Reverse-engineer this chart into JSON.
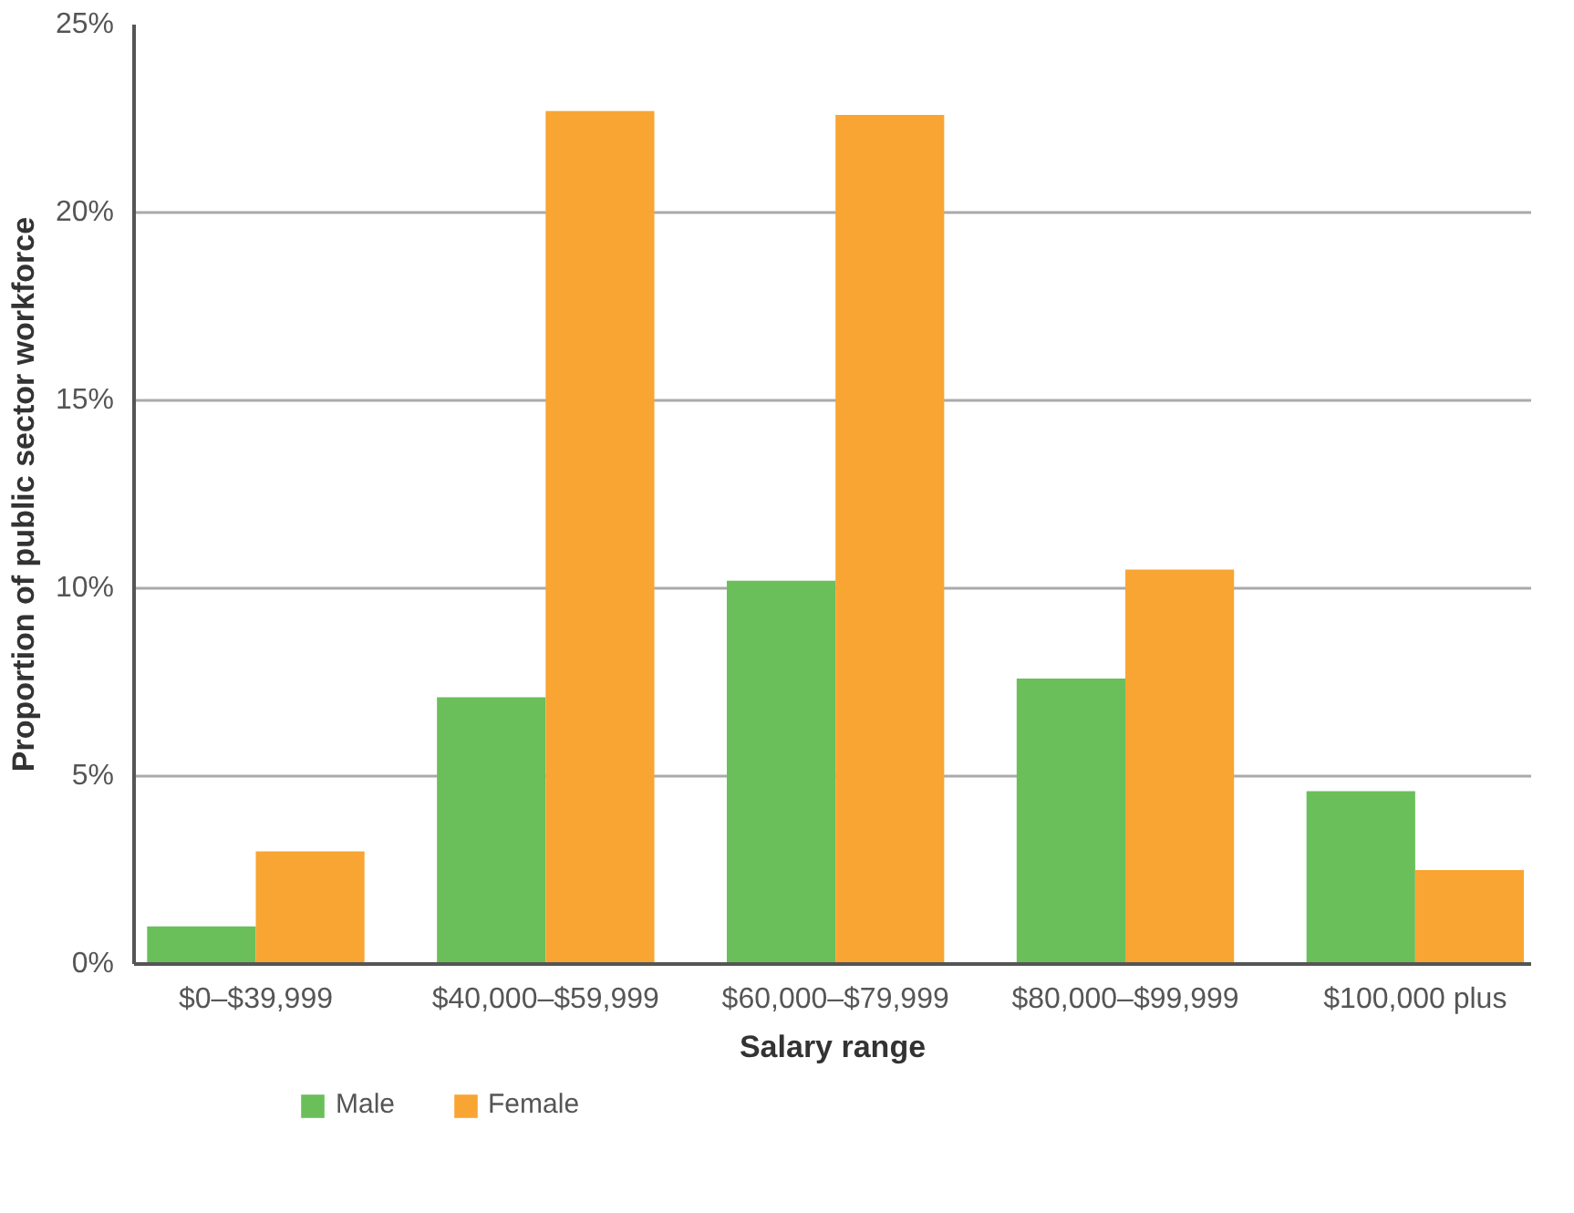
{
  "chart_data": {
    "type": "bar",
    "xlabel": "Salary range",
    "ylabel": "Proportion of public sector workforce",
    "categories": [
      "$0–$39,999",
      "$40,000–$59,999",
      "$60,000–$79,999",
      "$80,000–$99,999",
      "$100,000 plus"
    ],
    "series": [
      {
        "name": "Male",
        "color": "#6abf5a",
        "values": [
          1.0,
          7.1,
          10.2,
          7.6,
          4.6
        ]
      },
      {
        "name": "Female",
        "color": "#f9a533",
        "values": [
          3.0,
          22.7,
          22.6,
          10.5,
          2.5
        ]
      }
    ],
    "ylim": [
      0,
      25
    ],
    "yticks": [
      {
        "value": 0,
        "label": "0%"
      },
      {
        "value": 5,
        "label": "5%"
      },
      {
        "value": 10,
        "label": "10%"
      },
      {
        "value": 15,
        "label": "15%"
      },
      {
        "value": 20,
        "label": "20%"
      },
      {
        "value": 25,
        "label": "25%"
      }
    ],
    "grid": "y",
    "legend": "bottom left"
  }
}
